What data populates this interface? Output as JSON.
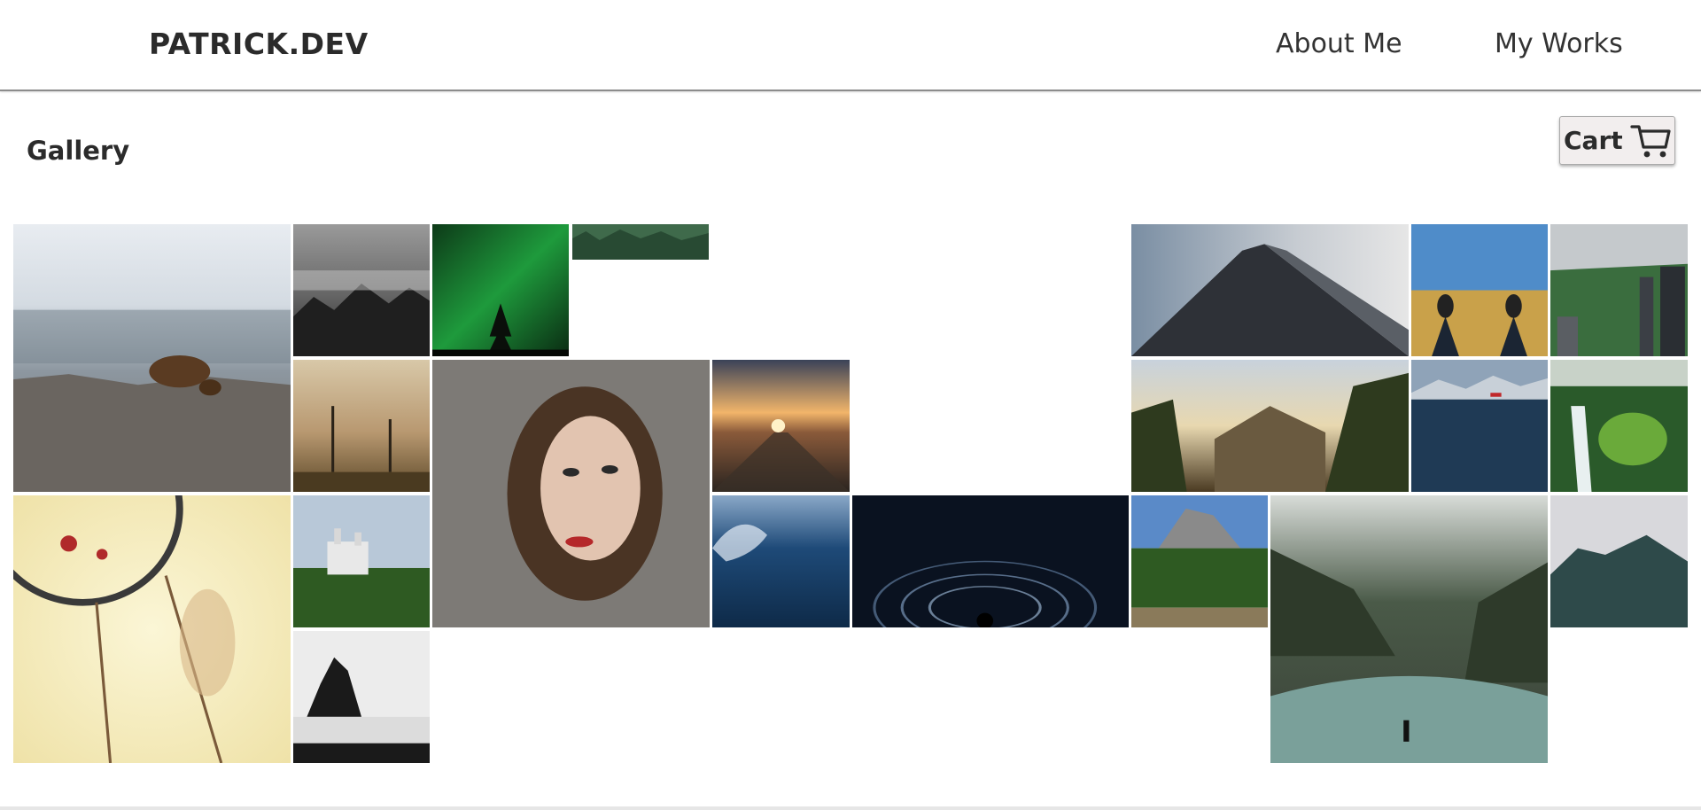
{
  "header": {
    "logo": "PATRICK.DEV",
    "nav": {
      "about": "About Me",
      "works": "My Works"
    }
  },
  "page": {
    "title": "Gallery",
    "cart_label": "Cart",
    "cart_icon": "shopping-cart-icon"
  },
  "gallery": {
    "photos": [
      {
        "subject": "bear"
      },
      {
        "subject": "misty-forest"
      },
      {
        "subject": "aurora-pine"
      },
      {
        "subject": "forest-strip"
      },
      {
        "subject": "skyscraper"
      },
      {
        "subject": "sneakers-field"
      },
      {
        "subject": "city-park"
      },
      {
        "subject": "dead-trees-sunset"
      },
      {
        "subject": "portrait-woman"
      },
      {
        "subject": "railway-sunset"
      },
      {
        "subject": "valley-sunrise"
      },
      {
        "subject": "lake-boat"
      },
      {
        "subject": "waterfall"
      },
      {
        "subject": "dreamcatcher"
      },
      {
        "subject": "castle"
      },
      {
        "subject": "ocean-wave"
      },
      {
        "subject": "star-trails"
      },
      {
        "subject": "yosemite-cliffs"
      },
      {
        "subject": "river-hiker"
      },
      {
        "subject": "misty-mountain"
      },
      {
        "subject": "sea-stack"
      }
    ]
  },
  "colors": {
    "header_border": "#8c8c8c",
    "cart_bg": "#f2eeee",
    "text": "#2b2b2b"
  }
}
